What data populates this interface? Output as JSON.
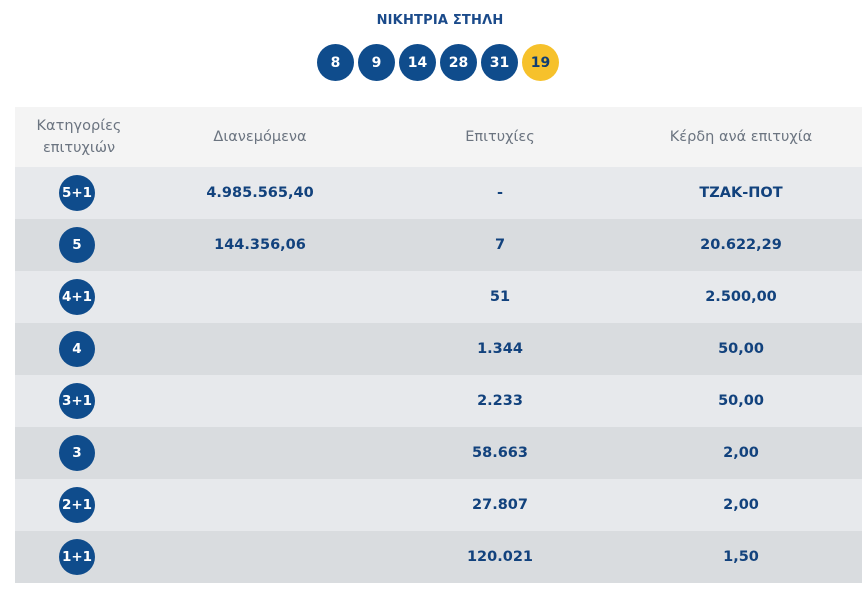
{
  "header": {
    "title": "ΝΙΚΗΤΡΙΑ ΣΤΗΛΗ",
    "numbers": [
      "8",
      "9",
      "14",
      "28",
      "31"
    ],
    "joker": "19"
  },
  "table": {
    "columns": [
      "Κατηγορίες επιτυχιών",
      "Διανεμόμενα",
      "Επιτυχίες",
      "Κέρδη ανά επιτυχία"
    ],
    "rows": [
      {
        "category": "5+1",
        "distributed": "4.985.565,40",
        "winners": "-",
        "prize": "ΤΖΑΚ-ΠΟΤ"
      },
      {
        "category": "5",
        "distributed": "144.356,06",
        "winners": "7",
        "prize": "20.622,29"
      },
      {
        "category": "4+1",
        "distributed": "",
        "winners": "51",
        "prize": "2.500,00"
      },
      {
        "category": "4",
        "distributed": "",
        "winners": "1.344",
        "prize": "50,00"
      },
      {
        "category": "3+1",
        "distributed": "",
        "winners": "2.233",
        "prize": "50,00"
      },
      {
        "category": "3",
        "distributed": "",
        "winners": "58.663",
        "prize": "2,00"
      },
      {
        "category": "2+1",
        "distributed": "",
        "winners": "27.807",
        "prize": "2,00"
      },
      {
        "category": "1+1",
        "distributed": "",
        "winners": "120.021",
        "prize": "1,50"
      }
    ]
  },
  "colors": {
    "ball": "#0f4c8c",
    "joker": "#f6c12b",
    "text": "#12427d",
    "row_light": "#e7e9ec",
    "row_dark": "#d9dcdf"
  }
}
